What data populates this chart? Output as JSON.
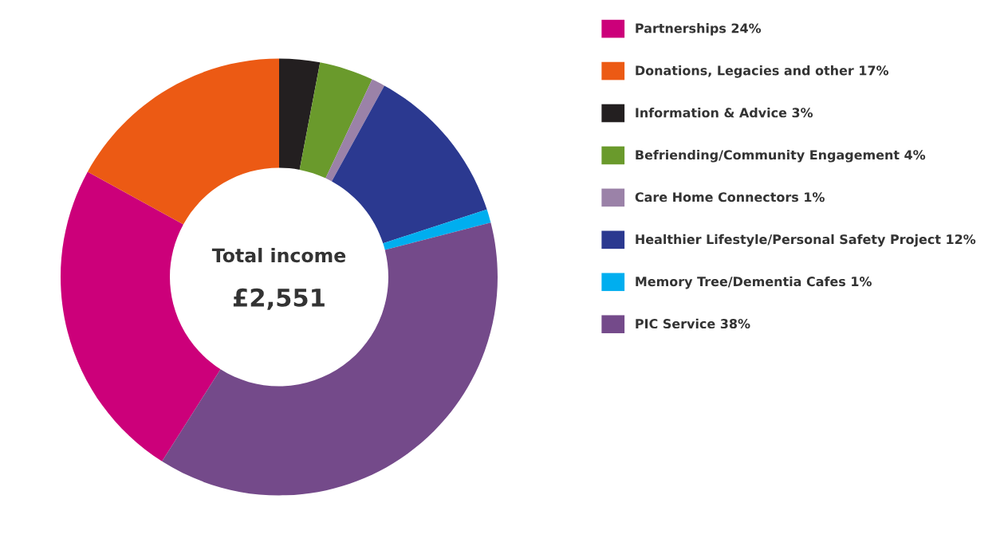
{
  "chart_data": {
    "type": "donut",
    "categories": [
      "Partnerships 24%",
      "Donations, Legacies and other 17%",
      "Information & Advice 3%",
      "Befriending/Community Engagement 4%",
      "Care Home Connectors 1%",
      "Healthier Lifestyle/Personal Safety Project 12%",
      "Memory Tree/Dementia Cafes 1%",
      "PIC Service 38%"
    ],
    "values": [
      24,
      17,
      3,
      4,
      1,
      12,
      1,
      38
    ],
    "colors": [
      "#cc007a",
      "#ec5a14",
      "#231f20",
      "#6a9a2c",
      "#9b82a8",
      "#2b3990",
      "#00aeef",
      "#744a8a"
    ],
    "annotations": [
      "Total income",
      "£2,551"
    ],
    "legend": "right"
  }
}
